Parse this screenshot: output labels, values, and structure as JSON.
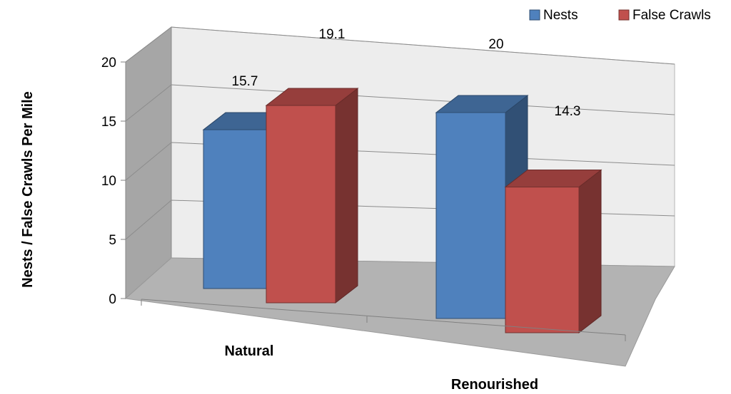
{
  "chart_data": {
    "type": "bar",
    "categories": [
      "Natural",
      "Renourished"
    ],
    "series": [
      {
        "name": "Nests",
        "values": [
          15.7,
          20
        ],
        "color": "#4F81BD"
      },
      {
        "name": "False Crawls",
        "values": [
          19.1,
          14.3
        ],
        "color": "#C0504D"
      }
    ],
    "data_labels": [
      [
        "15.7",
        "20"
      ],
      [
        "19.1",
        "14.3"
      ]
    ],
    "ylabel": "Nests / False Crawls Per Mile",
    "xlabel": "",
    "ylim": [
      0,
      20
    ],
    "yticks": [
      "0",
      "5",
      "10",
      "15",
      "20"
    ],
    "grid": true,
    "legend_position": "top-right",
    "three_d": true
  }
}
